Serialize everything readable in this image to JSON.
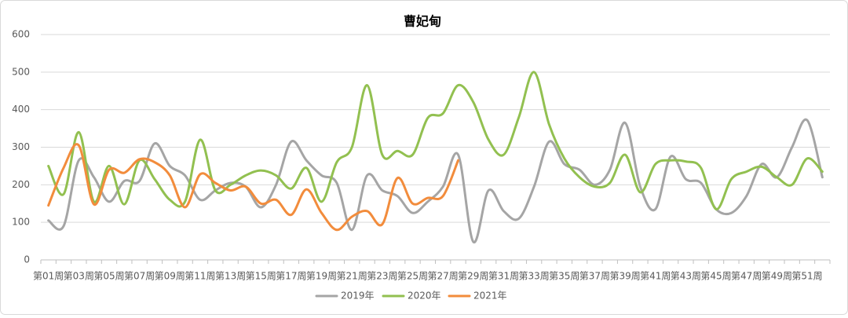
{
  "chart_data": {
    "type": "line",
    "title": "曹妃甸",
    "categories": [
      "第01周",
      null,
      "第03周",
      null,
      "第05周",
      null,
      "第07周",
      null,
      "第09周",
      null,
      "第11周",
      null,
      "第13周",
      null,
      "第15周",
      null,
      "第17周",
      null,
      "第19周",
      null,
      "第21周",
      null,
      "第23周",
      null,
      "第25周",
      null,
      "第27周",
      null,
      "第29周",
      null,
      "第31周",
      null,
      "第33周",
      null,
      "第35周",
      null,
      "第37周",
      null,
      "第39周",
      null,
      "第41周",
      null,
      "第43周",
      null,
      "第45周",
      null,
      "第47周",
      null,
      "第49周",
      null,
      "第51周",
      null
    ],
    "series": [
      {
        "name": "2019年",
        "color": "#a5a5a5",
        "values": [
          105,
          90,
          265,
          220,
          155,
          210,
          210,
          310,
          250,
          225,
          160,
          185,
          205,
          195,
          140,
          200,
          315,
          265,
          225,
          205,
          80,
          225,
          185,
          170,
          125,
          155,
          195,
          280,
          48,
          185,
          130,
          110,
          195,
          315,
          255,
          240,
          200,
          240,
          365,
          195,
          135,
          275,
          215,
          205,
          135,
          125,
          170,
          255,
          220,
          300,
          372,
          220
        ]
      },
      {
        "name": "2020年",
        "color": "#92c050",
        "values": [
          250,
          175,
          340,
          155,
          250,
          148,
          265,
          215,
          160,
          155,
          320,
          185,
          200,
          225,
          238,
          225,
          190,
          245,
          155,
          260,
          300,
          465,
          280,
          290,
          280,
          378,
          390,
          465,
          420,
          320,
          280,
          380,
          500,
          360,
          270,
          220,
          195,
          205,
          280,
          180,
          255,
          265,
          262,
          245,
          135,
          215,
          235,
          248,
          220,
          200,
          270,
          235
        ]
      },
      {
        "name": "2021年",
        "color": "#f28c3c",
        "values": [
          145,
          245,
          305,
          148,
          240,
          232,
          268,
          260,
          225,
          140,
          228,
          205,
          185,
          195,
          150,
          160,
          120,
          188,
          125,
          80,
          115,
          130,
          95,
          218,
          150,
          165,
          170,
          265,
          null,
          null,
          null,
          null,
          null,
          null,
          null,
          null,
          null,
          null,
          null,
          null,
          null,
          null,
          null,
          null,
          null,
          null,
          null,
          null,
          null,
          null,
          null,
          null
        ]
      }
    ],
    "ylim": [
      0,
      600
    ],
    "yticks": [
      0,
      100,
      200,
      300,
      400,
      500,
      600
    ],
    "grid": true,
    "legend": "bottom"
  }
}
